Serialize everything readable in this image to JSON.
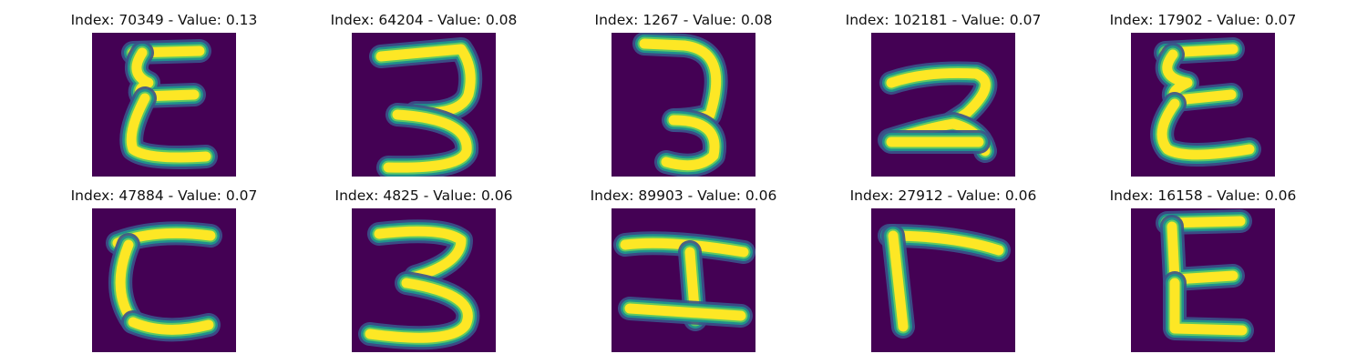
{
  "chart_data": {
    "type": "image-grid",
    "layout": "2 rows x 5 columns",
    "colormap": {
      "name": "viridis",
      "background": "#440154",
      "edge": "#3b528b",
      "mid": "#21918c",
      "high": "#5ec962",
      "peak": "#fde725"
    },
    "panels": [
      {
        "title": "Index: 70349 - Value: 0.13",
        "index": 70349,
        "value": 0.13,
        "glyph": "E-like"
      },
      {
        "title": "Index: 64204 - Value: 0.08",
        "index": 64204,
        "value": 0.08,
        "glyph": "3"
      },
      {
        "title": "Index: 1267 - Value: 0.08",
        "index": 1267,
        "value": 0.08,
        "glyph": "3"
      },
      {
        "title": "Index: 102181 - Value: 0.07",
        "index": 102181,
        "value": 0.07,
        "glyph": "2"
      },
      {
        "title": "Index: 17902 - Value: 0.07",
        "index": 17902,
        "value": 0.07,
        "glyph": "E-like"
      },
      {
        "title": "Index: 47884 - Value: 0.07",
        "index": 47884,
        "value": 0.07,
        "glyph": "E-like"
      },
      {
        "title": "Index: 4825 - Value: 0.06",
        "index": 4825,
        "value": 0.06,
        "glyph": "3"
      },
      {
        "title": "Index: 89903 - Value: 0.06",
        "index": 89903,
        "value": 0.06,
        "glyph": "I-like"
      },
      {
        "title": "Index: 27912 - Value: 0.06",
        "index": 27912,
        "value": 0.06,
        "glyph": "L-like"
      },
      {
        "title": "Index: 16158 - Value: 0.06",
        "index": 16158,
        "value": 0.06,
        "glyph": "E-like"
      }
    ]
  }
}
